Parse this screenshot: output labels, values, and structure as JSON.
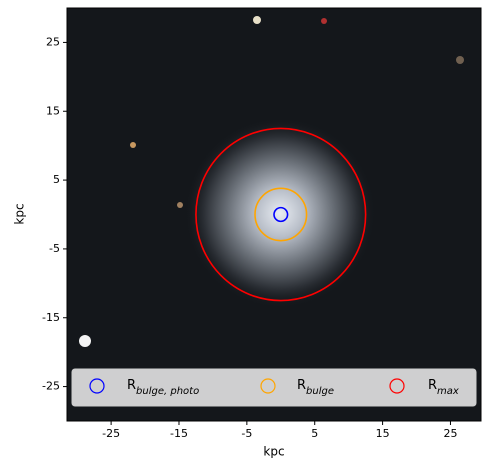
{
  "chart_data": {
    "type": "circle_overlay",
    "xlabel": "kpc",
    "ylabel": "kpc",
    "xlim": [
      -31.5,
      29.5
    ],
    "ylim": [
      -30,
      30
    ],
    "xticks": [
      -25,
      -15,
      -5,
      5,
      15,
      25
    ],
    "yticks": [
      -25,
      -15,
      -5,
      5,
      15,
      25
    ],
    "center": [
      0,
      0
    ],
    "series": [
      {
        "name": "R",
        "subscript": "bulge, photo",
        "color": "#0000ff",
        "radius": 1.0
      },
      {
        "name": "R",
        "subscript": "bulge",
        "color": "#ffa500",
        "radius": 3.8
      },
      {
        "name": "R",
        "subscript": "max",
        "color": "#ff0000",
        "radius": 12.5
      }
    ],
    "legend": "lower center"
  }
}
